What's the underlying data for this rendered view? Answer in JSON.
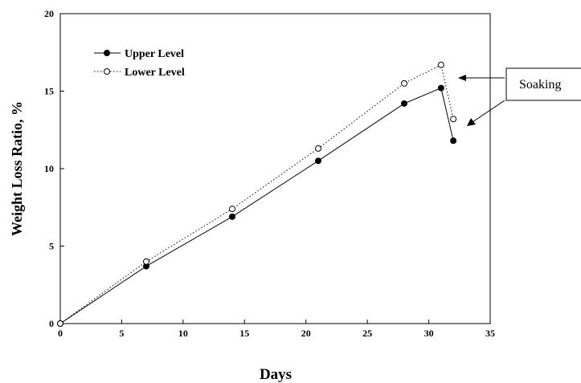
{
  "chart_data": {
    "type": "line",
    "title": "",
    "xlabel": "Days",
    "ylabel": "Weight Loss Ratio, %",
    "xlim": [
      0,
      35
    ],
    "ylim": [
      0,
      20
    ],
    "xticks": [
      0,
      5,
      10,
      15,
      20,
      25,
      30,
      35
    ],
    "yticks": [
      0,
      5,
      10,
      15,
      20
    ],
    "grid": false,
    "legend_position": "top-left",
    "series": [
      {
        "name": "Upper Level",
        "style": "solid",
        "marker": "filled-circle",
        "x": [
          0,
          7,
          14,
          21,
          28,
          31,
          32
        ],
        "y": [
          0,
          3.7,
          6.9,
          10.5,
          14.2,
          15.2,
          11.8
        ]
      },
      {
        "name": "Lower Level",
        "style": "dotted",
        "marker": "open-circle",
        "x": [
          0,
          7,
          14,
          21,
          28,
          31,
          32
        ],
        "y": [
          0,
          4.0,
          7.4,
          11.3,
          15.5,
          16.7,
          13.2
        ]
      }
    ],
    "annotations": [
      {
        "text": "Soaking"
      }
    ]
  },
  "colors": {
    "line": "#000000",
    "background": "#ffffff"
  }
}
